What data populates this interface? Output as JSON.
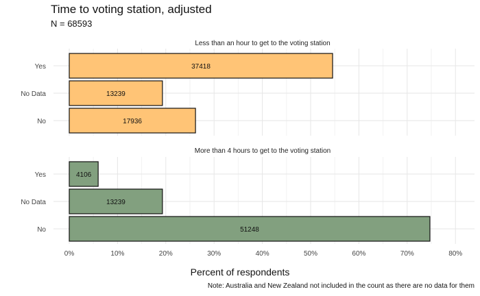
{
  "chart_data": {
    "type": "bar",
    "orientation": "horizontal",
    "title": "Time to voting station, adjusted",
    "subtitle": "N = 68593",
    "xlabel": "Percent of respondents",
    "note": "Note: Australia and New Zealand not included in the count as there are no data for them",
    "xlim": [
      0,
      0.8
    ],
    "xticks": [
      "0%",
      "10%",
      "20%",
      "30%",
      "40%",
      "50%",
      "60%",
      "70%",
      "80%"
    ],
    "grid": true,
    "panels": [
      {
        "title": "Less than an hour to get to the voting station",
        "color": "#FFC476",
        "categories": [
          "Yes",
          "No Data",
          "No"
        ],
        "values": [
          0.5455,
          0.193,
          0.2615
        ],
        "counts": [
          "37418",
          "13239",
          "17936"
        ]
      },
      {
        "title": "More than 4 hours to get to the voting station",
        "color": "#82A07F",
        "categories": [
          "Yes",
          "No Data",
          "No"
        ],
        "values": [
          0.0599,
          0.193,
          0.7471
        ],
        "counts": [
          "4106",
          "13239",
          "51248"
        ]
      }
    ]
  }
}
